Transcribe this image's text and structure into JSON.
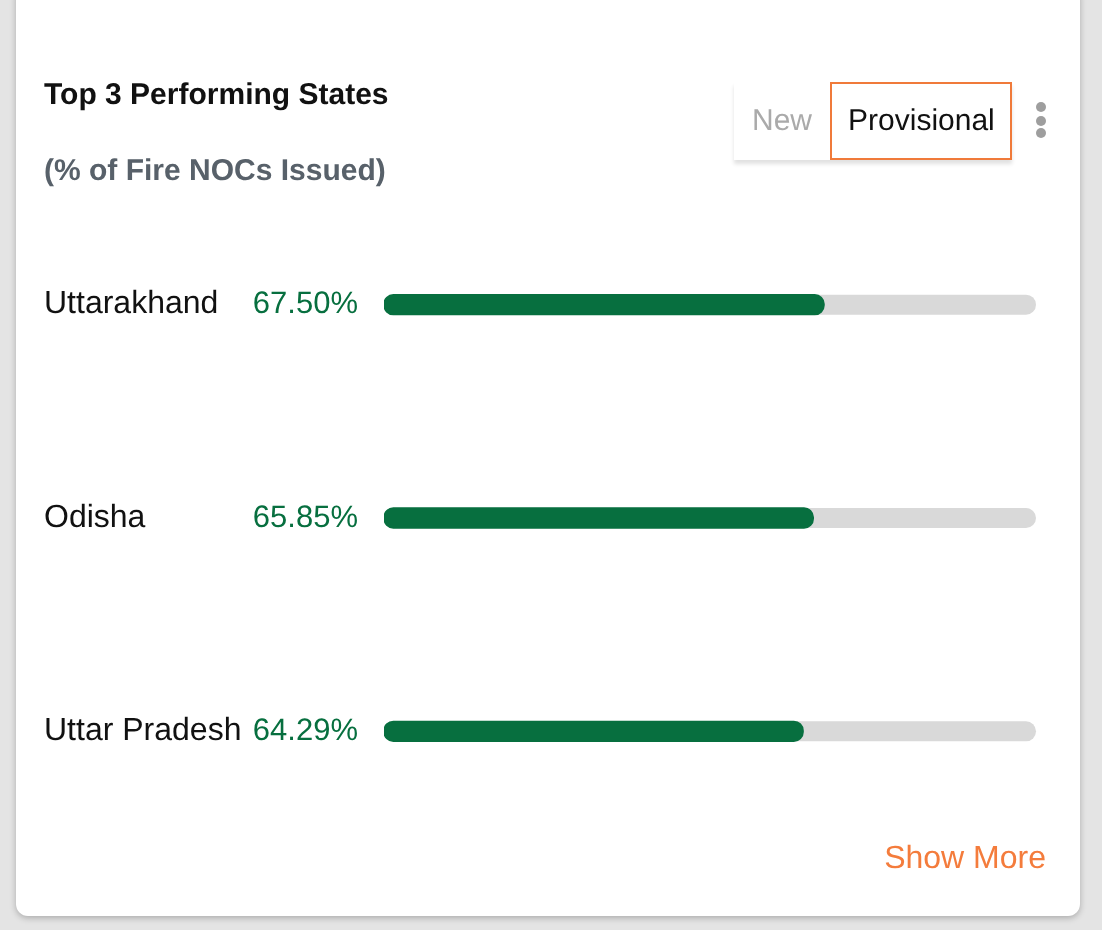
{
  "chart_data": {
    "type": "bar",
    "orientation": "horizontal",
    "title": "Top 3 Performing States",
    "subtitle": "(% of Fire NOCs Issued)",
    "categories": [
      "Uttarakhand",
      "Odisha",
      "Uttar Pradesh"
    ],
    "values": [
      67.5,
      65.85,
      64.29
    ],
    "color": "#076f3f",
    "value_labels": [
      "67.50%",
      "65.85%",
      "64.29%"
    ],
    "xlim": [
      0,
      100
    ],
    "tick_labels": "y",
    "annotations": [
      "New",
      "Provisional",
      "Show More"
    ]
  }
}
